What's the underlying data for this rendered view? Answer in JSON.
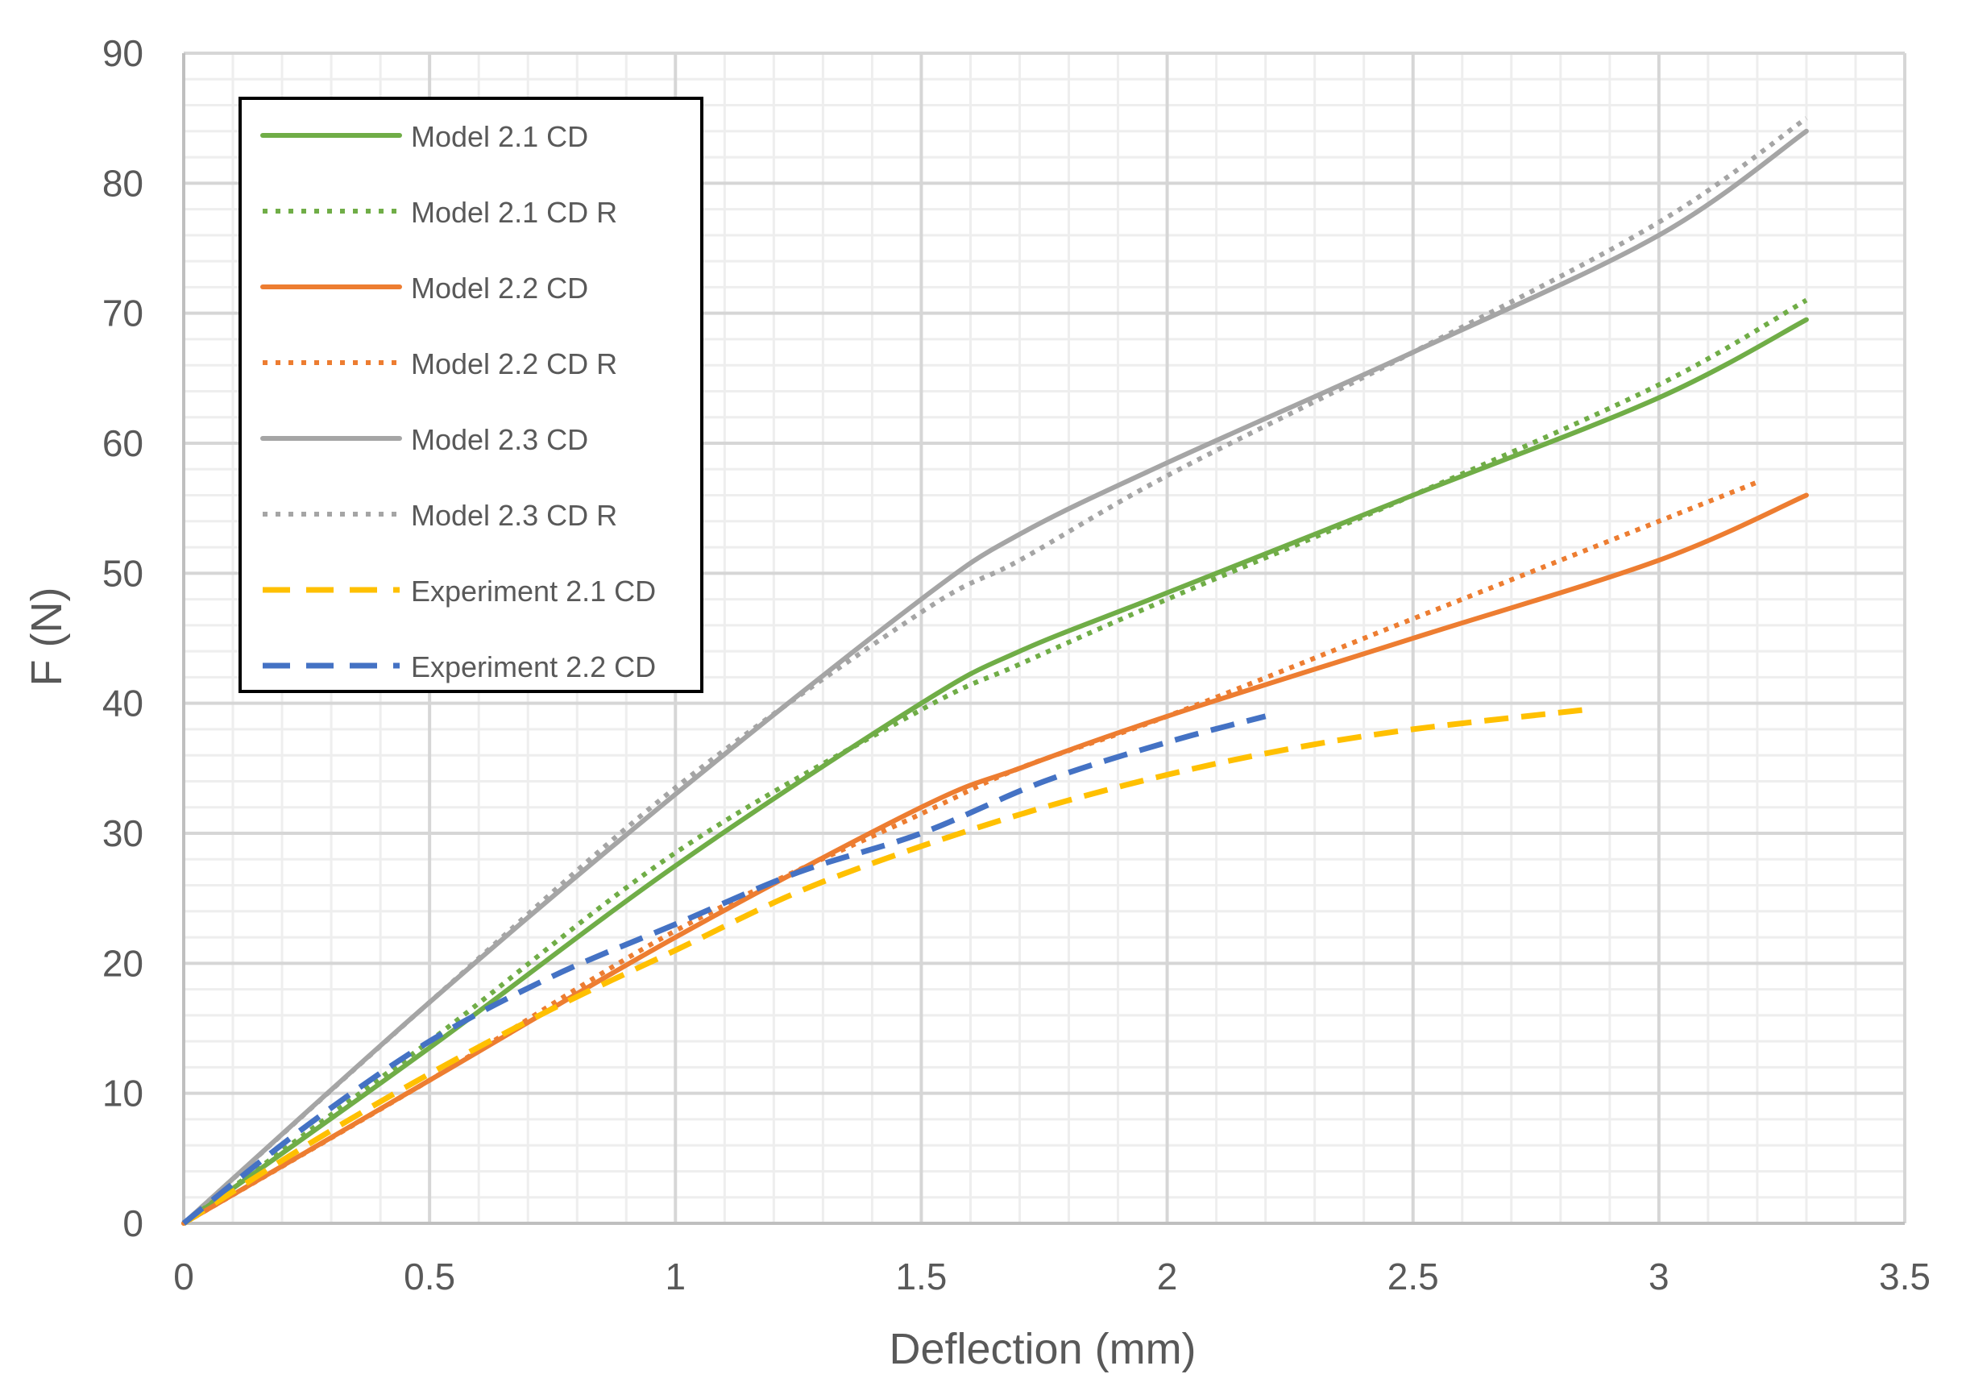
{
  "chart_data": {
    "type": "line",
    "title": "",
    "xlabel": "Deflection (mm)",
    "ylabel": "F (N)",
    "xlim": [
      0,
      3.5
    ],
    "ylim": [
      0,
      90
    ],
    "x_major_ticks": [
      0,
      0.5,
      1,
      1.5,
      2,
      2.5,
      3,
      3.5
    ],
    "x_tick_labels": [
      "0",
      "0.5",
      "1",
      "1.5",
      "2",
      "2.5",
      "3",
      "3.5"
    ],
    "y_major_ticks": [
      0,
      10,
      20,
      30,
      40,
      50,
      60,
      70,
      80,
      90
    ],
    "y_tick_labels": [
      "0",
      "10",
      "20",
      "30",
      "40",
      "50",
      "60",
      "70",
      "80",
      "90"
    ],
    "x_minor_step": 0.1,
    "y_minor_step": 2,
    "grid": true,
    "legend_position": "top-left",
    "series": [
      {
        "name": "Model 2.1 CD",
        "color": "#70AD47",
        "style": "solid",
        "x": [
          0,
          0.5,
          1.0,
          1.5,
          1.7,
          2.0,
          2.5,
          3.0,
          3.3
        ],
        "y": [
          0,
          13.5,
          27.5,
          40.0,
          44.0,
          48.5,
          56.0,
          63.5,
          69.5
        ]
      },
      {
        "name": "Model 2.1 CD R",
        "color": "#70AD47",
        "style": "dotted",
        "x": [
          0,
          0.5,
          1.0,
          1.5,
          1.7,
          2.0,
          2.5,
          3.0,
          3.3
        ],
        "y": [
          0,
          14.0,
          28.5,
          39.5,
          43.0,
          48.0,
          56.0,
          64.5,
          71.0
        ]
      },
      {
        "name": "Model 2.2 CD",
        "color": "#ED7D31",
        "style": "solid",
        "x": [
          0,
          0.5,
          1.0,
          1.5,
          1.7,
          2.0,
          2.5,
          3.0,
          3.3
        ],
        "y": [
          0,
          11.0,
          22.0,
          32.0,
          35.0,
          39.0,
          45.0,
          51.0,
          56.0
        ]
      },
      {
        "name": "Model 2.2 CD R",
        "color": "#ED7D31",
        "style": "dotted",
        "x": [
          0,
          0.5,
          1.0,
          1.5,
          1.7,
          2.0,
          2.5,
          3.0,
          3.2
        ],
        "y": [
          0,
          11.0,
          22.5,
          31.5,
          35.0,
          39.0,
          46.5,
          54.0,
          57.0
        ]
      },
      {
        "name": "Model 2.3 CD",
        "color": "#A5A5A5",
        "style": "solid",
        "x": [
          0,
          0.5,
          1.0,
          1.5,
          1.7,
          2.0,
          2.5,
          3.0,
          3.3
        ],
        "y": [
          0,
          17.0,
          33.0,
          48.0,
          53.0,
          58.5,
          67.0,
          76.0,
          84.0
        ]
      },
      {
        "name": "Model 2.3 CD R",
        "color": "#A5A5A5",
        "style": "dotted",
        "x": [
          0,
          0.5,
          1.0,
          1.5,
          1.7,
          2.0,
          2.5,
          3.0,
          3.3
        ],
        "y": [
          0,
          17.0,
          33.5,
          47.0,
          51.0,
          57.5,
          67.0,
          77.0,
          85.0
        ]
      },
      {
        "name": "Experiment 2.1 CD",
        "color": "#FFC000",
        "style": "dashed",
        "x": [
          0,
          0.25,
          0.5,
          0.75,
          1.0,
          1.25,
          1.5,
          1.75,
          2.0,
          2.25,
          2.5,
          2.85
        ],
        "y": [
          0,
          6.0,
          11.5,
          16.5,
          21.0,
          25.5,
          29.0,
          32.0,
          34.5,
          36.5,
          38.0,
          39.5
        ]
      },
      {
        "name": "Experiment 2.2 CD",
        "color": "#4472C4",
        "style": "dashed",
        "x": [
          0,
          0.25,
          0.5,
          0.75,
          1.0,
          1.25,
          1.5,
          1.75,
          2.0,
          2.2
        ],
        "y": [
          0,
          7.5,
          14.0,
          19.0,
          23.0,
          27.0,
          30.0,
          34.0,
          37.0,
          39.0
        ]
      }
    ]
  }
}
